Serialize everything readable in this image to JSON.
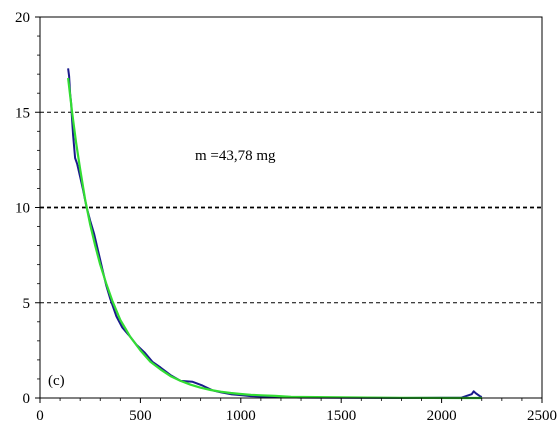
{
  "chart_data": {
    "type": "line",
    "title": "",
    "xlabel": "",
    "ylabel": "",
    "xlim": [
      0,
      2500
    ],
    "ylim": [
      0,
      20
    ],
    "x_ticks": [
      0,
      500,
      1000,
      1500,
      2000,
      2500
    ],
    "y_ticks": [
      0,
      5,
      10,
      15,
      20
    ],
    "grid": "horizontal dashed at 5, 10, 15",
    "legend": "none",
    "annotations": [
      {
        "text": "m =43,78 mg"
      },
      {
        "text": "(c)"
      }
    ],
    "series": [
      {
        "color": "#1a1a8c",
        "points": [
          [
            140,
            17.3
          ],
          [
            145,
            16.9
          ],
          [
            150,
            16.0
          ],
          [
            155,
            15.5
          ],
          [
            160,
            14.6
          ],
          [
            165,
            13.8
          ],
          [
            175,
            12.6
          ],
          [
            185,
            12.3
          ],
          [
            200,
            11.6
          ],
          [
            215,
            10.9
          ],
          [
            230,
            10.1
          ],
          [
            250,
            9.3
          ],
          [
            270,
            8.6
          ],
          [
            290,
            7.7
          ],
          [
            310,
            6.8
          ],
          [
            330,
            5.9
          ],
          [
            350,
            5.2
          ],
          [
            380,
            4.3
          ],
          [
            410,
            3.7
          ],
          [
            450,
            3.2
          ],
          [
            480,
            2.8
          ],
          [
            520,
            2.4
          ],
          [
            560,
            1.9
          ],
          [
            600,
            1.6
          ],
          [
            650,
            1.2
          ],
          [
            700,
            0.9
          ],
          [
            760,
            0.85
          ],
          [
            810,
            0.65
          ],
          [
            860,
            0.4
          ],
          [
            900,
            0.3
          ],
          [
            950,
            0.2
          ],
          [
            1000,
            0.15
          ],
          [
            1050,
            0.1
          ],
          [
            1100,
            0.08
          ],
          [
            1180,
            0.05
          ],
          [
            1300,
            0.02
          ],
          [
            1500,
            0.01
          ],
          [
            1800,
            0.0
          ],
          [
            2100,
            0.02
          ],
          [
            2150,
            0.2
          ],
          [
            2160,
            0.35
          ],
          [
            2170,
            0.25
          ],
          [
            2190,
            0.1
          ],
          [
            2200,
            0.05
          ]
        ]
      },
      {
        "color": "#33dd33",
        "points": [
          [
            140,
            16.8
          ],
          [
            160,
            15.0
          ],
          [
            180,
            13.4
          ],
          [
            200,
            12.0
          ],
          [
            225,
            10.4
          ],
          [
            250,
            9.1
          ],
          [
            275,
            8.0
          ],
          [
            300,
            7.0
          ],
          [
            330,
            6.0
          ],
          [
            360,
            5.1
          ],
          [
            400,
            4.1
          ],
          [
            450,
            3.2
          ],
          [
            500,
            2.5
          ],
          [
            550,
            1.9
          ],
          [
            600,
            1.5
          ],
          [
            650,
            1.15
          ],
          [
            700,
            0.9
          ],
          [
            750,
            0.7
          ],
          [
            800,
            0.54
          ],
          [
            850,
            0.42
          ],
          [
            900,
            0.33
          ],
          [
            950,
            0.26
          ],
          [
            1000,
            0.21
          ],
          [
            1050,
            0.17
          ],
          [
            1100,
            0.14
          ],
          [
            1170,
            0.11
          ],
          [
            1250,
            0.06
          ],
          [
            1500,
            0.03
          ],
          [
            1800,
            0.01
          ],
          [
            2100,
            0.0
          ],
          [
            2200,
            0.0
          ]
        ]
      }
    ]
  }
}
